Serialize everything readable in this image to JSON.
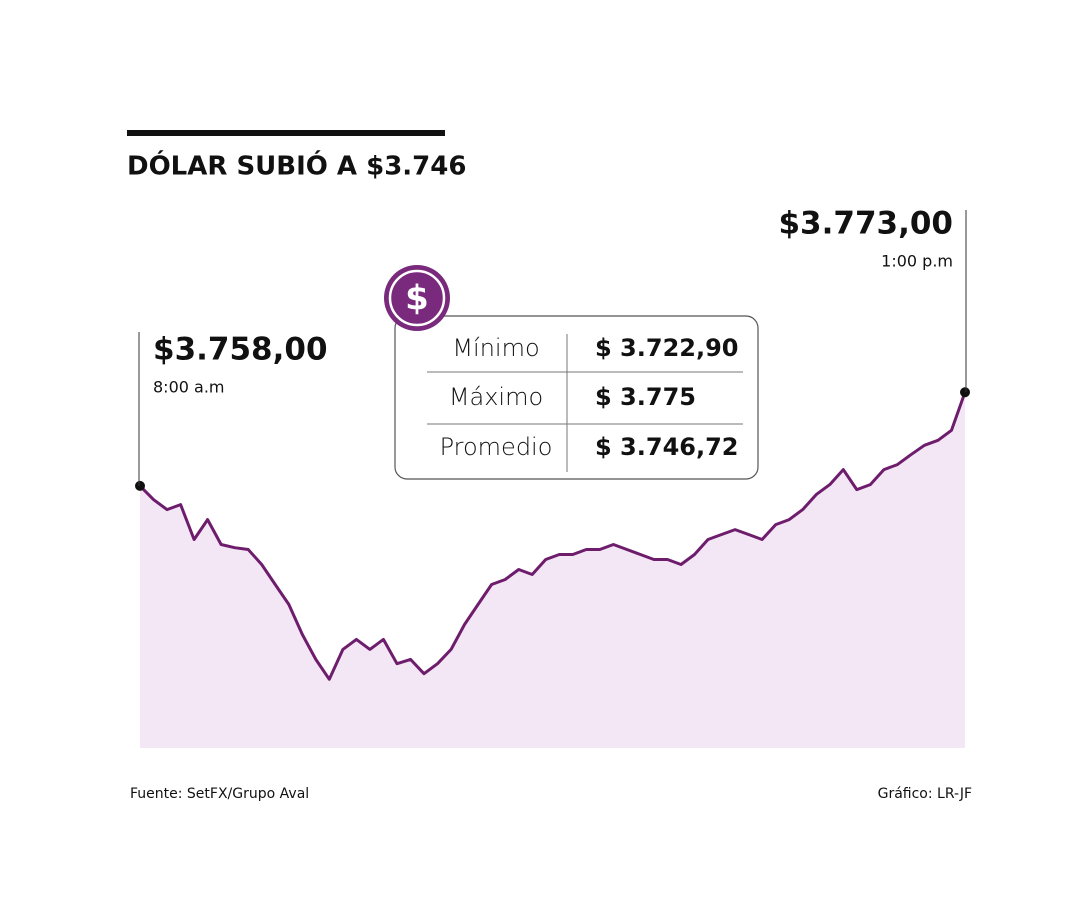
{
  "chart_data": {
    "type": "area",
    "title": "DÓLAR SUBIÓ A $3.746",
    "values": [
      3758,
      3755.8,
      3754.2,
      3755.0,
      3749.4,
      3752.6,
      3748.6,
      3748.1,
      3747.8,
      3745.4,
      3742.2,
      3739.0,
      3734.2,
      3730.2,
      3727.0,
      3731.8,
      3733.4,
      3731.8,
      3733.4,
      3729.5,
      3730.2,
      3727.9,
      3729.5,
      3731.8,
      3735.8,
      3739.0,
      3742.2,
      3743.0,
      3744.6,
      3743.8,
      3746.2,
      3747.0,
      3747.0,
      3747.8,
      3747.8,
      3748.6,
      3747.8,
      3747.0,
      3746.2,
      3746.2,
      3745.4,
      3747.0,
      3749.4,
      3750.2,
      3751.0,
      3750.2,
      3749.4,
      3751.8,
      3752.6,
      3754.2,
      3756.6,
      3758.2,
      3760.6,
      3757.4,
      3758.2,
      3760.6,
      3761.4,
      3763.0,
      3764.5,
      3765.3,
      3766.9,
      3773.0
    ],
    "ylim": [
      3716,
      3774
    ],
    "color": "#6e1d6d",
    "fill_color": "#f4e7f5",
    "annotations": [
      {
        "text": "$3.758,00",
        "time": "8:00 a.m"
      },
      {
        "text": "$3.773,00",
        "time": "1:00 p.m"
      }
    ],
    "stats": [
      {
        "label": "Mínimo",
        "value": "$ 3.722,90"
      },
      {
        "label": "Máximo",
        "value": "$ 3.775"
      },
      {
        "label": "Promedio",
        "value": "$ 3.746,72"
      }
    ],
    "icon": "$",
    "source": "Fuente: SetFX/Grupo Aval",
    "credit": "Gráfico: LR-JF"
  }
}
